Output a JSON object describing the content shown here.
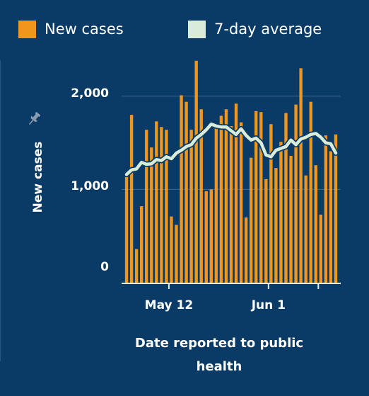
{
  "legend": {
    "cases_label": "New cases",
    "avg_label": "7-day average"
  },
  "colors": {
    "background": "#0a3a66",
    "bar": "#f0961d",
    "average_line": "#d9ecd9",
    "gridline": "#3f678e",
    "axis": "#e6edf3"
  },
  "icons": {
    "pin": "pin-icon"
  },
  "chart_data": {
    "type": "bar",
    "title": "",
    "xlabel": "Date reported to public health",
    "ylabel": "New cases",
    "ylim": [
      0,
      2500
    ],
    "yticks": [
      {
        "value": 0,
        "label": "0"
      },
      {
        "value": 1000,
        "label": "1,000"
      },
      {
        "value": 2000,
        "label": "2,000"
      }
    ],
    "xticks": [
      {
        "date": "2021-05-12",
        "label": "May 12"
      },
      {
        "date": "2021-06-01",
        "label": "Jun 1"
      }
    ],
    "grid": true,
    "legend_position": "top",
    "x_start": "2021-05-03",
    "x_end": "2021-06-16",
    "dates": [
      "2021-05-04",
      "2021-05-05",
      "2021-05-06",
      "2021-05-07",
      "2021-05-08",
      "2021-05-09",
      "2021-05-10",
      "2021-05-11",
      "2021-05-12",
      "2021-05-13",
      "2021-05-14",
      "2021-05-15",
      "2021-05-16",
      "2021-05-17",
      "2021-05-18",
      "2021-05-19",
      "2021-05-20",
      "2021-05-21",
      "2021-05-22",
      "2021-05-23",
      "2021-05-24",
      "2021-05-25",
      "2021-05-26",
      "2021-05-27",
      "2021-05-28",
      "2021-05-29",
      "2021-05-30",
      "2021-05-31",
      "2021-06-01",
      "2021-06-02",
      "2021-06-03",
      "2021-06-04",
      "2021-06-05",
      "2021-06-06",
      "2021-06-07",
      "2021-06-08",
      "2021-06-09",
      "2021-06-10",
      "2021-06-11",
      "2021-06-12",
      "2021-06-13",
      "2021-06-14",
      "2021-06-15"
    ],
    "series": [
      {
        "name": "New cases",
        "type": "bar",
        "values": [
          1190,
          1800,
          360,
          820,
          1640,
          1450,
          1730,
          1670,
          1640,
          710,
          620,
          2010,
          1940,
          1640,
          2380,
          1860,
          980,
          1000,
          1700,
          1790,
          1860,
          1680,
          1920,
          1720,
          700,
          1340,
          1840,
          1830,
          1110,
          1700,
          1230,
          1510,
          1820,
          1360,
          1910,
          2300,
          1150,
          1940,
          1260,
          730,
          1580,
          1410,
          1590
        ]
      },
      {
        "name": "7-day average",
        "type": "line",
        "values": [
          1160,
          1210,
          1220,
          1290,
          1270,
          1275,
          1320,
          1310,
          1350,
          1330,
          1390,
          1420,
          1460,
          1480,
          1550,
          1590,
          1640,
          1700,
          1680,
          1670,
          1670,
          1630,
          1590,
          1650,
          1580,
          1530,
          1550,
          1500,
          1370,
          1350,
          1420,
          1440,
          1460,
          1530,
          1480,
          1540,
          1560,
          1590,
          1600,
          1560,
          1500,
          1490,
          1390
        ]
      }
    ]
  }
}
